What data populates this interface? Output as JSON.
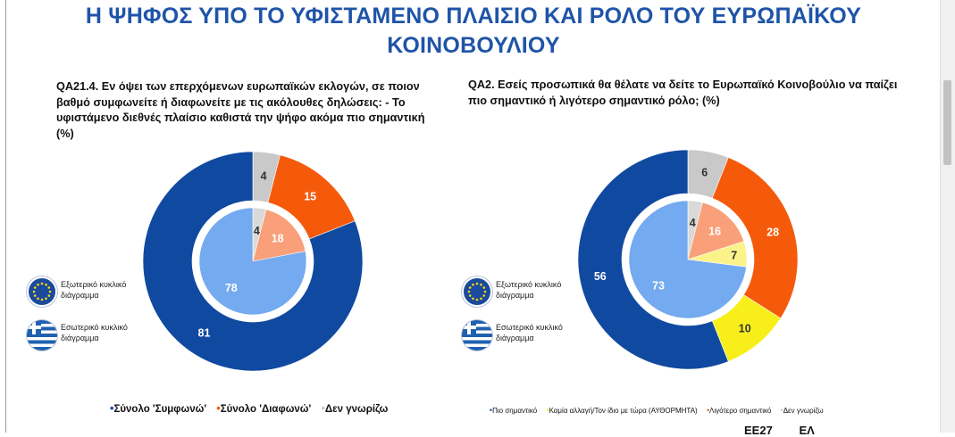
{
  "title_line1": "Η ΨΗΦΟΣ ΥΠΟ ΤΟ ΥΦΙΣΤΑΜΕΝΟ ΠΛΑΙΣΙΟ ΚΑΙ ΡΟΛΟ ΤΟΥ ΕΥΡΩΠΑΪΚΟΥ",
  "title_line2": "ΚΟΙΝΟΒΟΥΛΙΟΥ",
  "left": {
    "question": "QA21.4. Εν όψει των επερχόμενων ευρωπαϊκών εκλογών, σε ποιον βαθμό συμφωνείτε ή διαφωνείτε με τις ακόλουθες δηλώσεις: - Το υφιστάμενο διεθνές πλαίσιο καθιστά την ψήφο ακόμα πιο σημαντική (%)",
    "outer_label": "Εξωτερικό κυκλικό διάγραμμα",
    "inner_label": "Εσωτερικό κυκλικό διάγραμμα",
    "legend": [
      "Σύνολο 'Συμφωνώ'",
      "Σύνολο 'Διαφωνώ'",
      "Δεν γνωρίζω"
    ]
  },
  "right": {
    "question": "QA2. Εσείς προσωπικά θα θέλατε να δείτε το Ευρωπαϊκό Κοινοβούλιο να παίζει πιο σημαντικό ή λιγότερο σημαντικό ρόλο; (%)",
    "outer_label": "Εξωτερικό κυκλικό διάγραμμα",
    "inner_label": "Εσωτερικό κυκλικό διάγραμμα",
    "legend": [
      "Πιο σημαντικό",
      "Καμία αλλαγή/Τον ίδιο με τώρα (ΑΥΘΟΡΜΗΤΑ)",
      "Λιγότερο σημαντικό",
      "Δεν γνωρίζω"
    ]
  },
  "footer": [
    "EE27",
    "ΕΛ"
  ],
  "colors": {
    "title": "#1f54a8",
    "agree_outer": "#1049a0",
    "disagree_outer": "#f55a0b",
    "dontknow_outer": "#c9c9c9",
    "agree_inner": "#74aaf0",
    "disagree_inner": "#f9a07a",
    "dontknow_inner": "#d9d9d9",
    "nochange_outer": "#f8ef1a",
    "nochange_inner": "#fbf38a"
  },
  "chart_data": [
    {
      "type": "pie",
      "subtype": "nested-donut",
      "categories": [
        "Σύνολο 'Συμφωνώ'",
        "Σύνολο 'Διαφωνώ'",
        "Δεν γνωρίζω"
      ],
      "series": [
        {
          "ring": "outer",
          "values": [
            81,
            15,
            4
          ]
        },
        {
          "ring": "inner",
          "values": [
            78,
            18,
            4
          ]
        }
      ]
    },
    {
      "type": "pie",
      "subtype": "nested-donut",
      "categories": [
        "Πιο σημαντικό",
        "Καμία αλλαγή/Τον ίδιο με τώρα (ΑΥΘΟΡΜΗΤΑ)",
        "Λιγότερο σημαντικό",
        "Δεν γνωρίζω"
      ],
      "series": [
        {
          "ring": "outer",
          "values": [
            56,
            10,
            28,
            6
          ]
        },
        {
          "ring": "inner",
          "values": [
            73,
            7,
            16,
            4
          ]
        }
      ]
    }
  ]
}
